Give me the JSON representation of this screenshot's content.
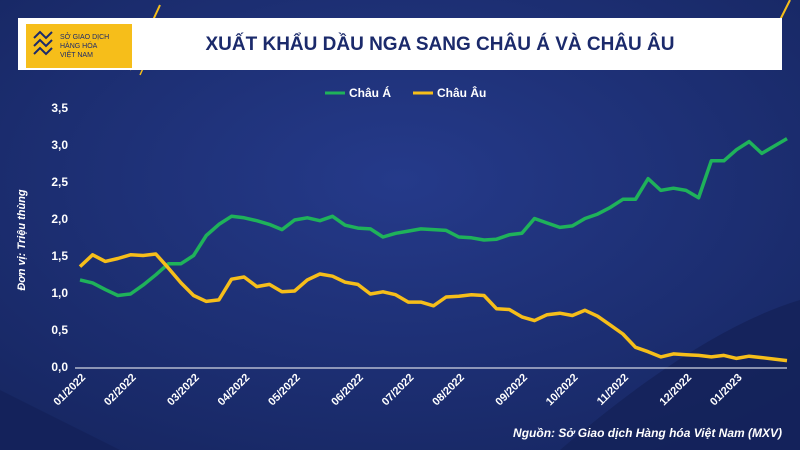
{
  "header": {
    "logo_lines": [
      "SỞ GIAO DỊCH",
      "HÀNG HÓA",
      "VIỆT NAM"
    ]
  },
  "chart_data": {
    "type": "line",
    "title": "XUẤT KHẨU DẦU NGA SANG CHÂU Á VÀ CHÂU ÂU",
    "y_label": "Đơn vị: Triệu thùng",
    "source": "Nguồn: Sở Giao dịch Hàng hóa Việt Nam (MXV)",
    "categories": [
      "01/2022",
      null,
      null,
      null,
      "02/2022",
      null,
      null,
      null,
      null,
      "03/2022",
      null,
      null,
      null,
      "04/2022",
      null,
      null,
      null,
      "05/2022",
      null,
      null,
      null,
      null,
      "06/2022",
      null,
      null,
      null,
      "07/2022",
      null,
      null,
      null,
      "08/2022",
      null,
      null,
      null,
      null,
      "09/2022",
      null,
      null,
      null,
      "10/2022",
      null,
      null,
      null,
      "11/2022",
      null,
      null,
      null,
      null,
      "12/2022",
      null,
      null,
      null,
      "01/2023",
      null,
      null,
      null,
      null
    ],
    "series": [
      {
        "name": "Châu Á",
        "color": "#1fb25a",
        "values": [
          1.19,
          1.15,
          1.06,
          0.98,
          1.0,
          1.12,
          1.26,
          1.41,
          1.41,
          1.52,
          1.79,
          1.94,
          2.05,
          2.03,
          1.99,
          1.94,
          1.87,
          2.0,
          2.03,
          1.99,
          2.05,
          1.93,
          1.89,
          1.88,
          1.77,
          1.82,
          1.85,
          1.88,
          1.87,
          1.86,
          1.77,
          1.76,
          1.73,
          1.74,
          1.8,
          1.82,
          2.02,
          1.96,
          1.9,
          1.92,
          2.02,
          2.08,
          2.17,
          2.28,
          2.28,
          2.56,
          2.4,
          2.43,
          2.4,
          2.3,
          2.8,
          2.8,
          2.95,
          3.06,
          2.9,
          3.0,
          3.1
        ]
      },
      {
        "name": "Châu Âu",
        "color": "#f6be1a",
        "values": [
          1.37,
          1.53,
          1.44,
          1.48,
          1.53,
          1.52,
          1.54,
          1.35,
          1.15,
          0.98,
          0.9,
          0.92,
          1.2,
          1.23,
          1.1,
          1.13,
          1.03,
          1.04,
          1.19,
          1.27,
          1.24,
          1.16,
          1.13,
          1.0,
          1.03,
          0.99,
          0.89,
          0.89,
          0.84,
          0.96,
          0.97,
          0.99,
          0.98,
          0.8,
          0.79,
          0.69,
          0.64,
          0.72,
          0.74,
          0.71,
          0.78,
          0.7,
          0.58,
          0.46,
          0.28,
          0.22,
          0.15,
          0.19,
          0.18,
          0.17,
          0.15,
          0.17,
          0.13,
          0.16,
          0.14,
          0.12,
          0.1
        ]
      }
    ],
    "ylim": [
      0,
      3.5
    ],
    "yticks": [
      {
        "value": 0,
        "label": "0,0"
      },
      {
        "value": 0.5,
        "label": "0,5"
      },
      {
        "value": 1,
        "label": "1,0"
      },
      {
        "value": 1.5,
        "label": "1,5"
      },
      {
        "value": 2,
        "label": "2,0"
      },
      {
        "value": 2.5,
        "label": "2,5"
      },
      {
        "value": 3,
        "label": "3,0"
      },
      {
        "value": 3.5,
        "label": "3,5"
      }
    ],
    "grid": false,
    "legend": "top"
  }
}
